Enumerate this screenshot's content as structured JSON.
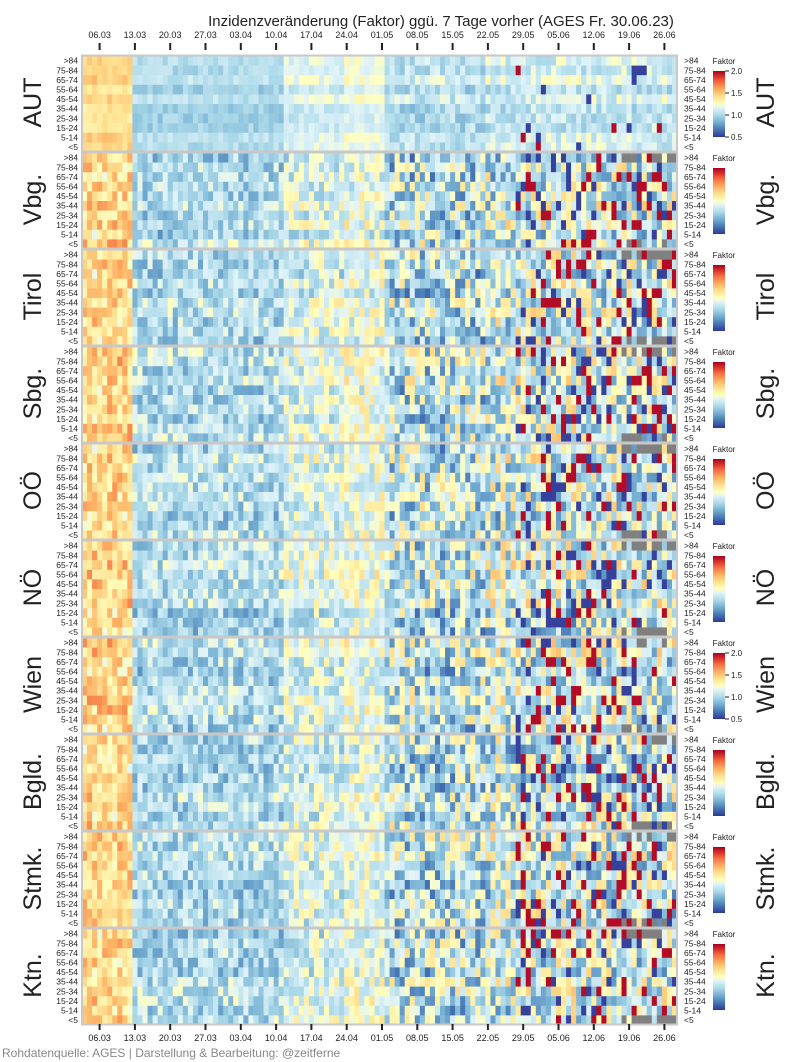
{
  "chart_data": {
    "type": "heatmap",
    "title": "Inzidenzveränderung (Faktor) ggü. 7 Tage vorher (AGES Fr. 30.06.23)",
    "x_tick_labels": [
      "06.03",
      "13.03",
      "20.03",
      "27.03",
      "03.04",
      "10.04",
      "17.04",
      "24.04",
      "01.05",
      "08.05",
      "15.05",
      "22.05",
      "29.05",
      "05.06",
      "12.06",
      "19.06",
      "26.06"
    ],
    "age_groups": [
      ">84",
      "75-84",
      "65-74",
      "55-64",
      "45-54",
      "35-44",
      "25-34",
      "15-24",
      "5-14",
      "<5"
    ],
    "regions": [
      "AUT",
      "Vbg.",
      "Tirol",
      "Sbg.",
      "OÖ",
      "NÖ",
      "Wien",
      "Bgld.",
      "Stmk.",
      "Ktn."
    ],
    "colorbar": {
      "label": "Faktor",
      "range": [
        0.5,
        2.0
      ],
      "tick_labels": [
        "0.5",
        "1.0",
        "1.5",
        "2.0"
      ],
      "ticks_visible_on": [
        "AUT",
        "Wien"
      ],
      "colormap": "RdYlBu_r"
    },
    "colors": {
      "low": "#313695",
      "mid": "#ffffbf",
      "high": "#a50026",
      "no_data": "#808080",
      "panel_border": "#c8c8c8"
    },
    "days": 118,
    "trend_note": "Factors mostly below 1 (blue) from March to mid-April, rising with mixed red/blue noise from May onward; grey cells indicate missing data in late June for smaller regions."
  },
  "footer": {
    "source": "Rohdatenquelle: AGES | Darstellung & Bearbeitung: @zeitferne"
  }
}
